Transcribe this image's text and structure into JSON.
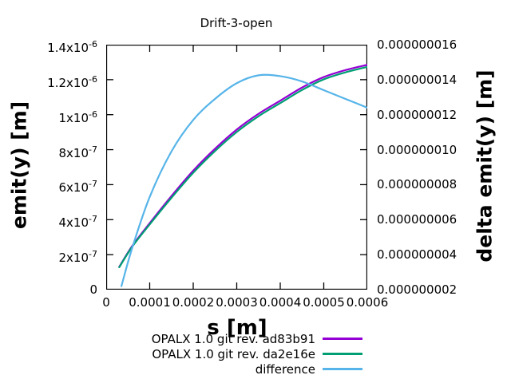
{
  "title": "Drift-3-open",
  "axes": {
    "x": {
      "label": "s [m]",
      "tick_labels": [
        "0",
        "0.0001",
        "0.0002",
        "0.0003",
        "0.0004",
        "0.0005",
        "0.0006"
      ],
      "tick_values": [
        0,
        0.0001,
        0.0002,
        0.0003,
        0.0004,
        0.0005,
        0.0006
      ],
      "range": [
        0,
        0.0006
      ]
    },
    "y_left": {
      "label": "emit(y) [m]",
      "tick_labels": [
        "0",
        "2x10^-7",
        "4x10^-7",
        "6x10^-7",
        "8x10^-7",
        "1x10^-6",
        "1.2x10^-6",
        "1.4x10^-6"
      ],
      "tick_values": [
        0,
        2e-07,
        4e-07,
        6e-07,
        8e-07,
        1e-06,
        1.2e-06,
        1.4e-06
      ],
      "range": [
        0,
        1.4e-06
      ]
    },
    "y_right": {
      "label": "delta emit(y) [m]",
      "tick_labels": [
        "0.000000002",
        "0.000000004",
        "0.000000006",
        "0.000000008",
        "0.000000010",
        "0.000000012",
        "0.000000014",
        "0.000000016"
      ],
      "tick_values": [
        2e-09,
        4e-09,
        6e-09,
        8e-09,
        1e-08,
        1.2e-08,
        1.4e-08,
        1.6e-08
      ],
      "range": [
        2e-09,
        1.6e-08
      ]
    }
  },
  "legend": [
    {
      "label": "OPALX 1.0 git rev. ad83b91",
      "color": "#9400d3"
    },
    {
      "label": "OPALX 1.0 git rev. da2e16e",
      "color": "#009e73"
    },
    {
      "label": "difference",
      "color": "#56b4e9"
    }
  ],
  "colors": {
    "border": "#000000",
    "background": "#ffffff"
  },
  "chart_data": {
    "type": "line",
    "title": "Drift-3-open",
    "xlabel": "s [m]",
    "ylabel_left": "emit(y) [m]",
    "ylabel_right": "delta emit(y) [m]",
    "xlim": [
      0,
      0.0006
    ],
    "ylim_left": [
      0,
      1.4e-06
    ],
    "ylim_right": [
      2e-09,
      1.6e-08
    ],
    "grid": false,
    "legend_position": "below-right",
    "series": [
      {
        "name": "OPALX 1.0 git rev. ad83b91",
        "color": "#9400d3",
        "axis": "left",
        "x": [
          3e-05,
          6e-05,
          0.0001,
          0.00015,
          0.0002,
          0.00025,
          0.0003,
          0.00035,
          0.0004,
          0.00045,
          0.0005,
          0.00055,
          0.0006
        ],
        "y": [
          1.3e-07,
          2.5e-07,
          3.8e-07,
          5.35e-07,
          6.8e-07,
          8.05e-07,
          9.15e-07,
          1.005e-06,
          1.08e-06,
          1.155e-06,
          1.215e-06,
          1.255e-06,
          1.285e-06
        ]
      },
      {
        "name": "OPALX 1.0 git rev. da2e16e",
        "color": "#009e73",
        "axis": "left",
        "x": [
          3e-05,
          6e-05,
          0.0001,
          0.00015,
          0.0002,
          0.00025,
          0.0003,
          0.00035,
          0.0004,
          0.00045,
          0.0005,
          0.00055,
          0.0006
        ],
        "y": [
          1.28e-07,
          2.46e-07,
          3.73e-07,
          5.25e-07,
          6.68e-07,
          7.92e-07,
          9.01e-07,
          9.91e-07,
          1.066e-06,
          1.141e-06,
          1.202e-06,
          1.242e-06,
          1.273e-06
        ]
      },
      {
        "name": "difference",
        "color": "#56b4e9",
        "axis": "right",
        "x": [
          3.5e-05,
          6e-05,
          0.0001,
          0.00015,
          0.0002,
          0.00025,
          0.0003,
          0.00035,
          0.0004,
          0.00045,
          0.0005,
          0.00055,
          0.0006
        ],
        "y": [
          2.2e-09,
          4.4e-09,
          7.3e-09,
          9.9e-09,
          1.17e-08,
          1.29e-08,
          1.38e-08,
          1.425e-08,
          1.42e-08,
          1.39e-08,
          1.34e-08,
          1.29e-08,
          1.24e-08
        ]
      }
    ]
  }
}
